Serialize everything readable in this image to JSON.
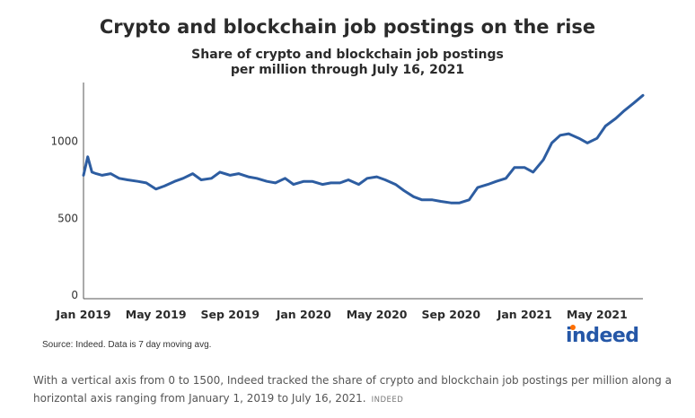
{
  "chart_data": {
    "type": "line",
    "title": "Crypto and blockchain job postings on the rise",
    "subtitle_lines": [
      "Share of crypto and blockchain job postings",
      "per million through July 16, 2021"
    ],
    "xlabel": "",
    "ylabel": "",
    "ylim": [
      0,
      1500
    ],
    "yticks": [
      0,
      500,
      1000
    ],
    "xlim": [
      "2019-01-01",
      "2021-07-16"
    ],
    "xticks": [
      {
        "date": "2019-01-01",
        "label": "Jan 2019"
      },
      {
        "date": "2019-05-01",
        "label": "May 2019"
      },
      {
        "date": "2019-09-01",
        "label": "Sep 2019"
      },
      {
        "date": "2020-01-01",
        "label": "Jan 2020"
      },
      {
        "date": "2020-05-01",
        "label": "May 2020"
      },
      {
        "date": "2020-09-01",
        "label": "Sep 2020"
      },
      {
        "date": "2021-01-01",
        "label": "Jan 2021"
      },
      {
        "date": "2021-05-01",
        "label": "May 2021"
      }
    ],
    "grid": false,
    "legend": "none",
    "line_color": "#2d5da1",
    "series": [
      {
        "x": [
          "2019-01-01",
          "2019-01-08",
          "2019-01-15",
          "2019-01-22",
          "2019-02-01",
          "2019-02-15",
          "2019-03-01",
          "2019-03-15",
          "2019-04-01",
          "2019-04-15",
          "2019-05-01",
          "2019-05-15",
          "2019-06-01",
          "2019-06-15",
          "2019-07-01",
          "2019-07-15",
          "2019-08-01",
          "2019-08-15",
          "2019-09-01",
          "2019-09-15",
          "2019-10-01",
          "2019-10-15",
          "2019-11-01",
          "2019-11-15",
          "2019-12-01",
          "2019-12-15",
          "2020-01-01",
          "2020-01-15",
          "2020-02-01",
          "2020-02-15",
          "2020-03-01",
          "2020-03-15",
          "2020-04-01",
          "2020-04-15",
          "2020-05-01",
          "2020-05-15",
          "2020-06-01",
          "2020-06-15",
          "2020-07-01",
          "2020-07-15",
          "2020-08-01",
          "2020-08-15",
          "2020-09-01",
          "2020-09-15",
          "2020-10-01",
          "2020-10-15",
          "2020-11-01",
          "2020-11-15",
          "2020-12-01",
          "2020-12-15",
          "2021-01-01",
          "2021-01-15",
          "2021-02-01",
          "2021-02-15",
          "2021-03-01",
          "2021-03-15",
          "2021-04-01",
          "2021-04-15",
          "2021-05-01",
          "2021-05-15",
          "2021-06-01",
          "2021-06-15",
          "2021-07-01",
          "2021-07-16"
        ],
        "y": [
          780,
          900,
          800,
          790,
          780,
          790,
          760,
          750,
          740,
          730,
          690,
          710,
          740,
          760,
          790,
          750,
          760,
          800,
          780,
          790,
          770,
          760,
          740,
          730,
          760,
          720,
          740,
          740,
          720,
          730,
          730,
          750,
          720,
          760,
          770,
          750,
          720,
          680,
          640,
          620,
          620,
          610,
          600,
          600,
          620,
          700,
          720,
          740,
          760,
          830,
          830,
          800,
          880,
          990,
          1040,
          1050,
          1020,
          990,
          1020,
          1100,
          1150,
          1200,
          1250,
          1300
        ]
      }
    ]
  },
  "source_note": "Source: Indeed. Data is 7 day moving avg.",
  "logo_text": "indeed",
  "caption": "With a vertical axis from 0 to 1500, Indeed tracked the share of crypto and blockchain job postings per million along a horizontal axis ranging from January 1, 2019 to July 16, 2021.",
  "caption_credit": "INDEED"
}
